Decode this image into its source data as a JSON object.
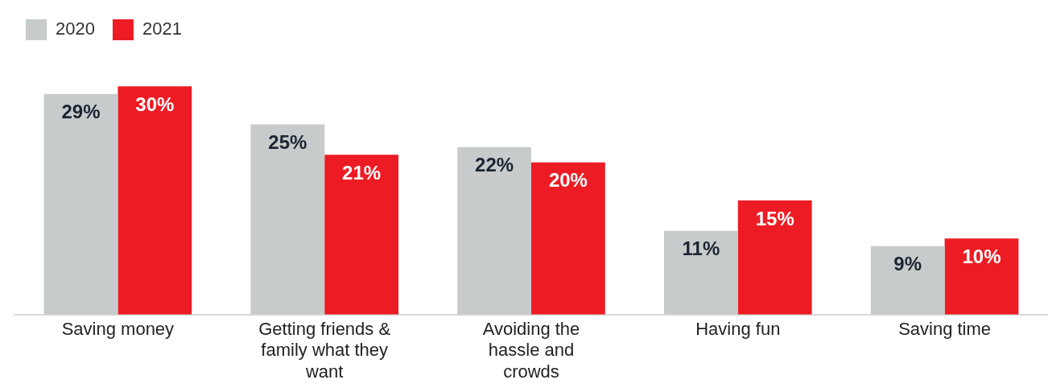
{
  "chart_data": {
    "type": "bar",
    "categories": [
      "Saving money",
      "Getting friends & family what they want",
      "Avoiding the hassle and crowds",
      "Having fun",
      "Saving time"
    ],
    "series": [
      {
        "name": "2020",
        "color": "#c8cbcb",
        "values": [
          29,
          25,
          22,
          11,
          9
        ],
        "value_labels": [
          "29%",
          "25%",
          "22%",
          "11%",
          "9%"
        ]
      },
      {
        "name": "2021",
        "color": "#ed1c24",
        "values": [
          30,
          21,
          20,
          15,
          10
        ],
        "value_labels": [
          "30%",
          "21%",
          "20%",
          "15%",
          "10%"
        ]
      }
    ],
    "relative": false,
    "legend": "top left",
    "grid": false
  }
}
